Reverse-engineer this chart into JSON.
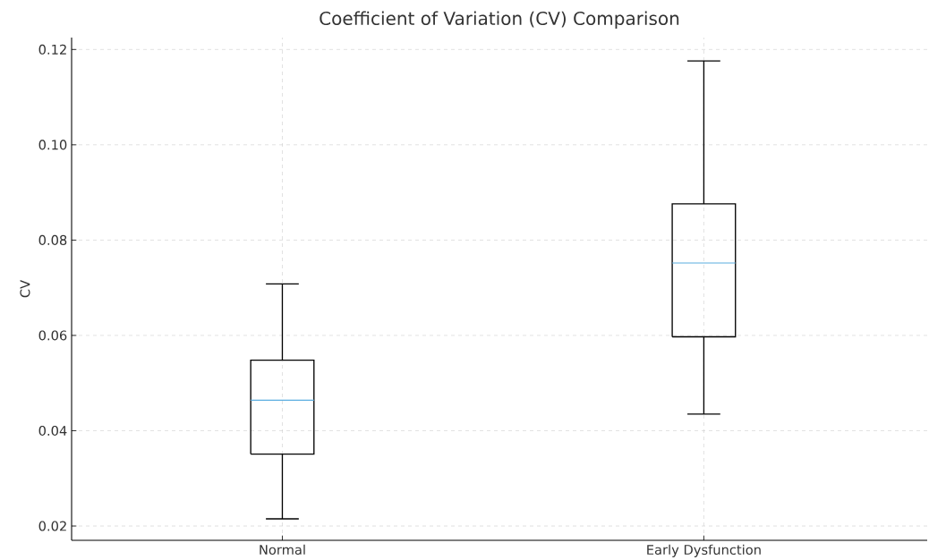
{
  "chart_data": {
    "type": "box",
    "title": "Coefficient of Variation (CV) Comparison",
    "ylabel": "CV",
    "categories": [
      "Normal",
      "Early Dysfunction"
    ],
    "boxes": [
      {
        "low": 0.0215,
        "q1": 0.0351,
        "median": 0.0464,
        "q3": 0.0548,
        "high": 0.0708
      },
      {
        "low": 0.0435,
        "q1": 0.0597,
        "median": 0.0752,
        "q3": 0.0876,
        "high": 0.1176
      }
    ],
    "color": "#000000",
    "ylim": [
      0.017,
      0.1225
    ],
    "yticks": [
      {
        "value": 0.02,
        "label": "0.02"
      },
      {
        "value": 0.04,
        "label": "0.04"
      },
      {
        "value": 0.06,
        "label": "0.06"
      },
      {
        "value": 0.08,
        "label": "0.08"
      },
      {
        "value": 0.1,
        "label": "0.10"
      },
      {
        "value": 0.12,
        "label": "0.12"
      }
    ],
    "grid": true
  }
}
